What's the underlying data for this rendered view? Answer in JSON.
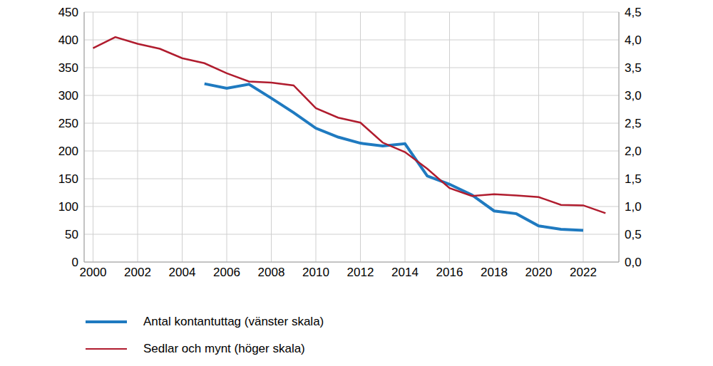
{
  "chart_data": {
    "type": "line",
    "x": [
      2000,
      2001,
      2002,
      2003,
      2004,
      2005,
      2006,
      2007,
      2008,
      2009,
      2010,
      2011,
      2012,
      2013,
      2014,
      2015,
      2016,
      2017,
      2018,
      2019,
      2020,
      2021,
      2022,
      2023
    ],
    "series": [
      {
        "name": "Antal kontantuttag (vänster skala)",
        "color": "#1f7ac0",
        "axis": "y",
        "values": [
          null,
          null,
          null,
          null,
          null,
          321,
          313,
          320,
          295,
          269,
          241,
          225,
          214,
          209,
          213,
          155,
          140,
          121,
          92,
          87,
          65,
          59,
          57,
          null
        ]
      },
      {
        "name": "Sedlar och mynt (höger skala)",
        "color": "#b01c2e",
        "axis": "y2",
        "values": [
          3.85,
          4.05,
          3.93,
          3.84,
          3.67,
          3.58,
          3.4,
          3.25,
          3.23,
          3.18,
          2.77,
          2.6,
          2.51,
          2.15,
          1.98,
          1.68,
          1.33,
          1.19,
          1.22,
          1.2,
          1.17,
          1.03,
          1.02,
          0.88
        ]
      }
    ],
    "xlim": [
      1999.6,
      2023.6
    ],
    "xticks": [
      2000,
      2002,
      2004,
      2006,
      2008,
      2010,
      2012,
      2014,
      2016,
      2018,
      2020,
      2022
    ],
    "ylim": [
      0,
      450
    ],
    "yticks": [
      0,
      50,
      100,
      150,
      200,
      250,
      300,
      350,
      400,
      450
    ],
    "y2lim": [
      0,
      4.5
    ],
    "y2ticks": [
      {
        "value": 0,
        "label": "0,0"
      },
      {
        "value": 0.5,
        "label": "0,5"
      },
      {
        "value": 1,
        "label": "1,0"
      },
      {
        "value": 1.5,
        "label": "1,5"
      },
      {
        "value": 2,
        "label": "2,0"
      },
      {
        "value": 2.5,
        "label": "2,5"
      },
      {
        "value": 3,
        "label": "3,0"
      },
      {
        "value": 3.5,
        "label": "3,5"
      },
      {
        "value": 4,
        "label": "4,0"
      },
      {
        "value": 4.5,
        "label": "4,5"
      }
    ],
    "grid": true,
    "legend": "bottom"
  }
}
